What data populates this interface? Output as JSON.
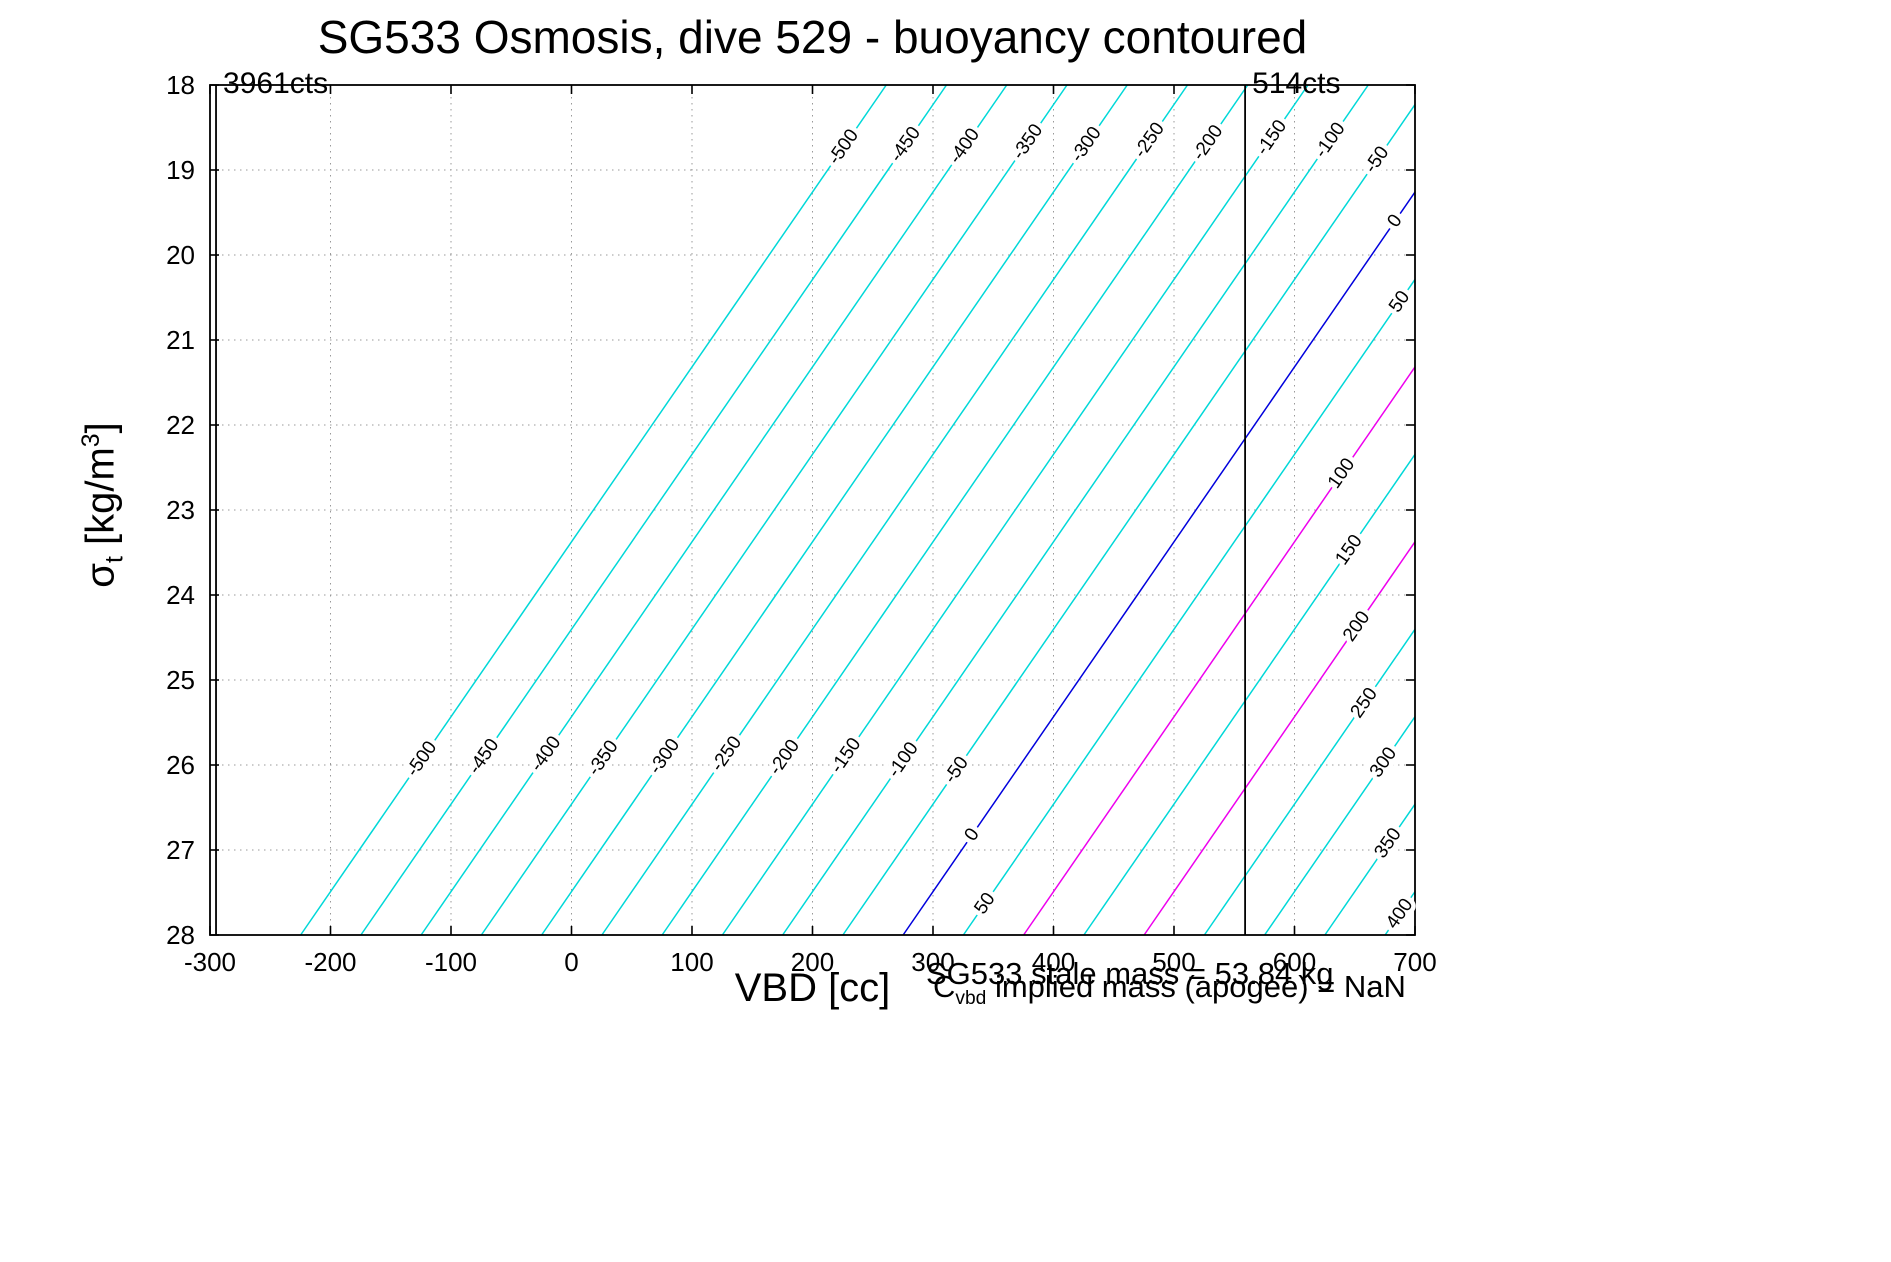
{
  "ylabel_parts": {
    "sigma": "σ",
    "sub": "t",
    "mid": " [kg/m",
    "sup": "3",
    "end": "]"
  },
  "annotations": {
    "stale_mass": "SG533 stale mass = 53.84 kg",
    "implied": {
      "prefix": "C",
      "sub": "vbd",
      "rest": " implied mass (apogee) = ",
      "value": "NaN"
    }
  },
  "chart_data": {
    "type": "line",
    "subtype": "contour",
    "title": "SG533 Osmosis, dive 529 - buoyancy contoured",
    "xlabel": "VBD [cc]",
    "ylabel": "sigma_t [kg/m^3]",
    "xlim": [
      -300,
      700
    ],
    "ylim": [
      18,
      28
    ],
    "y_axis_reversed": true,
    "grid": "dotted",
    "x_ticks": [
      -300,
      -200,
      -100,
      0,
      100,
      200,
      300,
      400,
      500,
      600,
      700
    ],
    "y_ticks": [
      18,
      19,
      20,
      21,
      22,
      23,
      24,
      25,
      26,
      27,
      28
    ],
    "contour_model": {
      "description": "buoyancy isolines (grams): straight lines VBD = level + offset - sigma_coeff*sigma",
      "offset": 1636,
      "sigma_coeff": 48.6
    },
    "levels": [
      -500,
      -450,
      -400,
      -350,
      -300,
      -250,
      -200,
      -150,
      -100,
      -50,
      0,
      50,
      100,
      150,
      200,
      250,
      300,
      350,
      400
    ],
    "level_step": 50,
    "colors": {
      "default": "#00d8d8",
      "0": "#0000dd",
      "100": "#ee00ee",
      "200": "#ee00ee"
    },
    "contour_labels": [
      {
        "level": -500,
        "sigma": 18.73
      },
      {
        "level": -450,
        "sigma": 18.7
      },
      {
        "level": -400,
        "sigma": 18.72
      },
      {
        "level": -350,
        "sigma": 18.67
      },
      {
        "level": -300,
        "sigma": 18.7
      },
      {
        "level": -250,
        "sigma": 18.65
      },
      {
        "level": -200,
        "sigma": 18.68
      },
      {
        "level": -150,
        "sigma": 18.62
      },
      {
        "level": -100,
        "sigma": 18.65
      },
      {
        "level": -50,
        "sigma": 18.88
      },
      {
        "level": 0,
        "sigma": 19.6
      },
      {
        "level": 50,
        "sigma": 20.55
      },
      {
        "level": 100,
        "sigma": 22.57
      },
      {
        "level": 150,
        "sigma": 23.47
      },
      {
        "level": 200,
        "sigma": 24.37
      },
      {
        "level": 250,
        "sigma": 25.27
      },
      {
        "level": 300,
        "sigma": 25.97
      },
      {
        "level": 350,
        "sigma": 26.92
      },
      {
        "level": 400,
        "sigma": 27.75
      },
      {
        "level": -500,
        "sigma": 25.93
      },
      {
        "level": -450,
        "sigma": 25.9
      },
      {
        "level": -400,
        "sigma": 25.87
      },
      {
        "level": -350,
        "sigma": 25.92
      },
      {
        "level": -300,
        "sigma": 25.9
      },
      {
        "level": -250,
        "sigma": 25.87
      },
      {
        "level": -200,
        "sigma": 25.91
      },
      {
        "level": -150,
        "sigma": 25.89
      },
      {
        "level": -100,
        "sigma": 25.94
      },
      {
        "level": -50,
        "sigma": 26.06
      },
      {
        "level": 0,
        "sigma": 26.82
      },
      {
        "level": 50,
        "sigma": 27.63
      }
    ],
    "label_angle_deg": -55,
    "count_lines": [
      {
        "vbd": -295,
        "label": "3961cts"
      },
      {
        "vbd": 559,
        "label": "514cts"
      }
    ]
  }
}
